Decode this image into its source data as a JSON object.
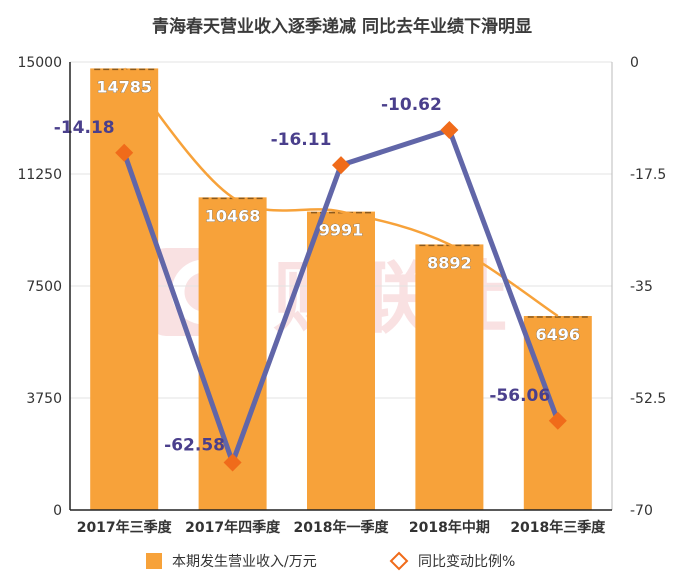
{
  "chart_data": {
    "type": "bar",
    "title": "青海春天营业收入逐季递减 同比去年业绩下滑明显",
    "categories": [
      "2017年三季度",
      "2017年四季度",
      "2018年一季度",
      "2018年中期",
      "2018年三季度"
    ],
    "series": [
      {
        "name": "本期发生营业收入/万元",
        "type": "bar",
        "axis": "left",
        "color": "#f7a23a",
        "values": [
          14785,
          10468,
          9991,
          8892,
          6496
        ],
        "labels": [
          "14785",
          "10468",
          "9991",
          "8892",
          "6496"
        ]
      },
      {
        "name": "同比变动比例%",
        "type": "line",
        "axis": "right",
        "color": "#6166a8",
        "marker_color": "#f06b1a",
        "values": [
          -14.18,
          -62.58,
          -16.11,
          -10.62,
          -56.06
        ],
        "labels": [
          "-14.18",
          "-62.58",
          "-16.11",
          "-10.62",
          "-56.06"
        ]
      }
    ],
    "trendline_color": "#f7a23a",
    "y_left": {
      "ylim": [
        0,
        15000
      ],
      "ticks": [
        "0",
        "3750",
        "7500",
        "11250",
        "15000"
      ]
    },
    "y_right": {
      "ylim": [
        -70,
        0
      ],
      "ticks": [
        "-70",
        "-52.5",
        "-35",
        "-17.5",
        "0"
      ]
    },
    "legend_placement": "bottom",
    "watermark": "财联社"
  }
}
